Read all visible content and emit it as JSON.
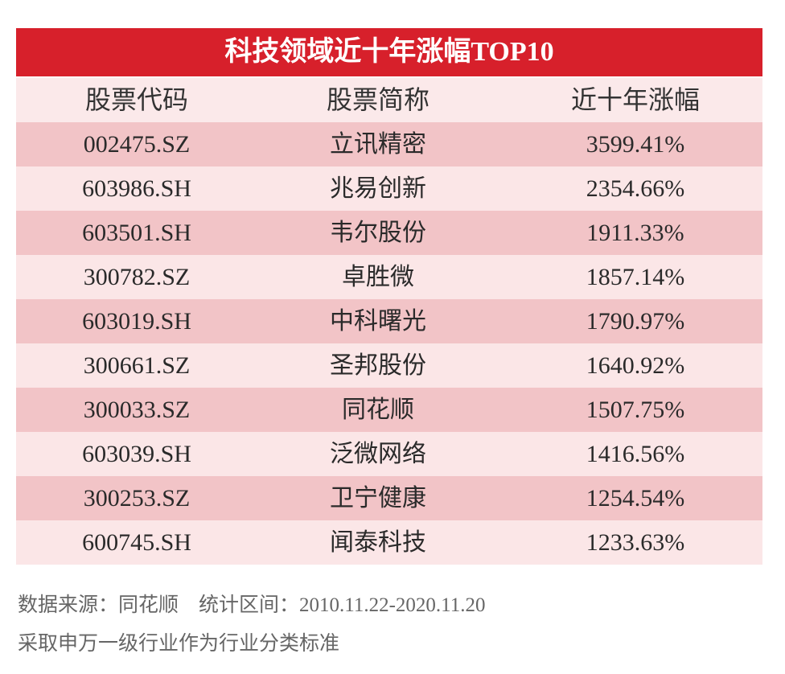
{
  "header": {
    "title": "科技领域近十年涨幅TOP10"
  },
  "table": {
    "columns": [
      "股票代码",
      "股票简称",
      "近十年涨幅"
    ],
    "rows": [
      [
        "002475.SZ",
        "立讯精密",
        "3599.41%"
      ],
      [
        "603986.SH",
        "兆易创新",
        "2354.66%"
      ],
      [
        "603501.SH",
        "韦尔股份",
        "1911.33%"
      ],
      [
        "300782.SZ",
        "卓胜微",
        "1857.14%"
      ],
      [
        "603019.SH",
        "中科曙光",
        "1790.97%"
      ],
      [
        "300661.SZ",
        "圣邦股份",
        "1640.92%"
      ],
      [
        "300033.SZ",
        "同花顺",
        "1507.75%"
      ],
      [
        "603039.SH",
        "泛微网络",
        "1416.56%"
      ],
      [
        "300253.SZ",
        "卫宁健康",
        "1254.54%"
      ],
      [
        "600745.SH",
        "闻泰科技",
        "1233.63%"
      ]
    ]
  },
  "footer": {
    "source": "数据来源：同花顺　统计区间：2010.11.22-2020.11.20",
    "note": "采取申万一级行业作为行业分类标准"
  }
}
